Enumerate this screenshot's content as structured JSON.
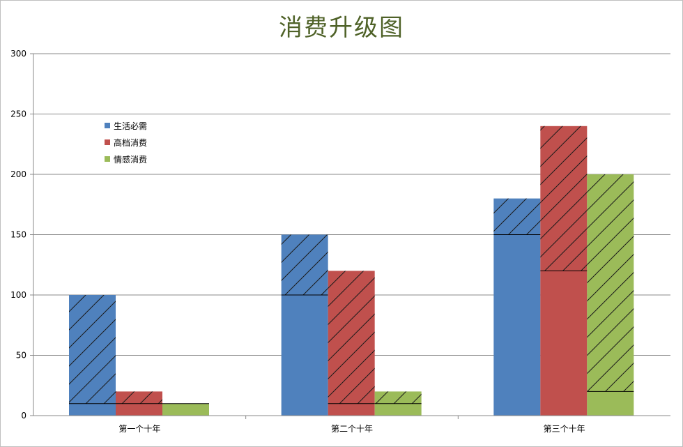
{
  "chart_data": {
    "type": "bar",
    "title": "消费升级图",
    "categories": [
      "第一个十年",
      "第二个十年",
      "第三个十年"
    ],
    "ylim": [
      0,
      300
    ],
    "yticks": [
      0,
      50,
      100,
      150,
      200,
      250,
      300
    ],
    "grid": true,
    "legend_position": "top-left",
    "series": [
      {
        "name": "生活必需",
        "color": "#4f81bd",
        "values": [
          100,
          150,
          180
        ],
        "solid_base": [
          10,
          100,
          150
        ]
      },
      {
        "name": "高档消费",
        "color": "#c0504d",
        "values": [
          20,
          120,
          240
        ],
        "solid_base": [
          10,
          10,
          120
        ]
      },
      {
        "name": "情感消费",
        "color": "#9bbb59",
        "values": [
          10,
          20,
          200
        ],
        "solid_base": [
          10,
          10,
          20
        ]
      }
    ]
  }
}
